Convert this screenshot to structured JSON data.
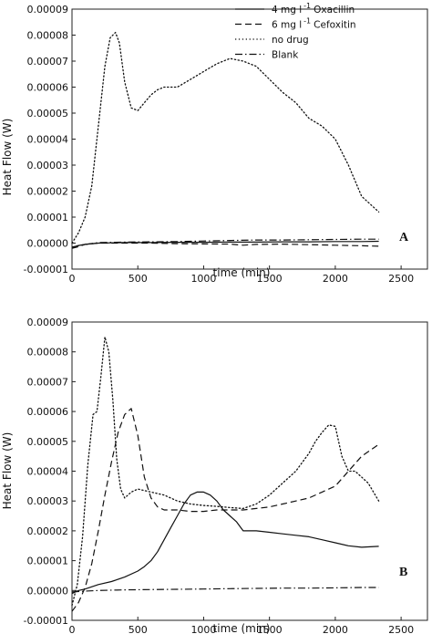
{
  "chart_data": [
    {
      "panel": "A",
      "type": "line",
      "xlabel": "time (min)",
      "ylabel": "Heat Flow (W)",
      "xlim": [
        0,
        2700
      ],
      "ylim": [
        -1e-05,
        9e-05
      ],
      "xticks": [
        0,
        500,
        1000,
        1500,
        2000,
        2500
      ],
      "xtick_labels": [
        "0",
        "500",
        "1000",
        "1500",
        "2000",
        "2500"
      ],
      "yticks": [
        -1e-05,
        0,
        1e-05,
        2e-05,
        3e-05,
        4e-05,
        5e-05,
        6e-05,
        7e-05,
        8e-05,
        9e-05
      ],
      "ytick_labels": [
        "-0.00001",
        "0.00000",
        "0.00001",
        "0.00002",
        "0.00003",
        "0.00004",
        "0.00005",
        "0.00006",
        "0.00007",
        "0.00008",
        "0.00009"
      ],
      "legend": {
        "placement": "top-right",
        "entries": [
          {
            "prefix": "4 mg l",
            "sup": "-1",
            "suffix": "Oxacillin",
            "style": "solid"
          },
          {
            "prefix": "6 mg l",
            "sup": "-1",
            "suffix": "Cefoxitin",
            "style": "dashed"
          },
          {
            "prefix": "no drug",
            "sup": "",
            "suffix": "",
            "style": "dotted"
          },
          {
            "prefix": "Blank",
            "sup": "",
            "suffix": "",
            "style": "dashdot"
          }
        ]
      },
      "series": [
        {
          "name": "4 mg l -1 Oxacillin",
          "style": "solid",
          "x": [
            0,
            40,
            100,
            200,
            400,
            600,
            800,
            1000,
            1200,
            1400,
            1600,
            1800,
            2000,
            2200,
            2330
          ],
          "y": [
            -2e-06,
            -1e-06,
            -5e-07,
            0,
            2e-07,
            2e-07,
            3e-07,
            3e-07,
            4e-07,
            4e-07,
            5e-07,
            5e-07,
            6e-07,
            6e-07,
            7e-07
          ]
        },
        {
          "name": "6 mg l -1 Cefoxitin",
          "style": "dashed",
          "x": [
            0,
            40,
            100,
            200,
            400,
            600,
            800,
            1000,
            1200,
            1300,
            1400,
            1600,
            1800,
            2000,
            2200,
            2330
          ],
          "y": [
            -2e-06,
            -1.5e-06,
            -5e-07,
            0,
            0,
            0,
            -2e-07,
            -3e-07,
            -4e-07,
            -8e-07,
            -5e-07,
            -4e-07,
            -6e-07,
            -8e-07,
            -1e-06,
            -1.2e-06
          ]
        },
        {
          "name": "no drug",
          "style": "dotted",
          "x": [
            0,
            50,
            100,
            150,
            200,
            250,
            290,
            330,
            360,
            400,
            450,
            500,
            550,
            600,
            650,
            700,
            800,
            900,
            1000,
            1100,
            1200,
            1300,
            1400,
            1500,
            1600,
            1700,
            1800,
            1900,
            2000,
            2100,
            2200,
            2330
          ],
          "y": [
            0,
            4e-06,
            1e-05,
            2.2e-05,
            4.5e-05,
            6.8e-05,
            7.9e-05,
            8.1e-05,
            7.7e-05,
            6.2e-05,
            5.2e-05,
            5.1e-05,
            5.4e-05,
            5.7e-05,
            5.9e-05,
            6e-05,
            6e-05,
            6.3e-05,
            6.6e-05,
            6.9e-05,
            7.1e-05,
            7e-05,
            6.8e-05,
            6.3e-05,
            5.8e-05,
            5.4e-05,
            4.8e-05,
            4.5e-05,
            4e-05,
            3e-05,
            1.8e-05,
            1.2e-05
          ]
        },
        {
          "name": "Blank",
          "style": "dashdot",
          "x": [
            0,
            100,
            200,
            400,
            600,
            800,
            1000,
            1200,
            1400,
            1600,
            1800,
            2000,
            2200,
            2330
          ],
          "y": [
            -1.5e-06,
            -5e-07,
            2e-07,
            4e-07,
            5e-07,
            6e-07,
            8e-07,
            1e-06,
            1.2e-06,
            1.2e-06,
            1.3e-06,
            1.4e-06,
            1.5e-06,
            1.5e-06
          ]
        }
      ],
      "annotation": "A"
    },
    {
      "panel": "B",
      "type": "line",
      "xlabel": "time (min)",
      "ylabel": "Heat Flow (W)",
      "xlim": [
        0,
        2700
      ],
      "ylim": [
        -1e-05,
        9e-05
      ],
      "xticks": [
        0,
        500,
        1000,
        1500,
        2000,
        2500
      ],
      "xtick_labels": [
        "0",
        "500",
        "1000",
        "1500",
        "2000",
        "2500"
      ],
      "yticks": [
        -1e-05,
        0,
        1e-05,
        2e-05,
        3e-05,
        4e-05,
        5e-05,
        6e-05,
        7e-05,
        8e-05,
        9e-05
      ],
      "ytick_labels": [
        "-0.00001",
        "0.00000",
        "0.00001",
        "0.00002",
        "0.00003",
        "0.00004",
        "0.00005",
        "0.00006",
        "0.00007",
        "0.00008",
        "0.00009"
      ],
      "series": [
        {
          "name": "4 mg l -1 Oxacillin",
          "style": "solid",
          "x": [
            0,
            50,
            100,
            200,
            300,
            400,
            500,
            550,
            600,
            650,
            700,
            750,
            800,
            850,
            900,
            950,
            1000,
            1050,
            1100,
            1150,
            1200,
            1250,
            1300,
            1400,
            1500,
            1600,
            1700,
            1800,
            1900,
            2000,
            2100,
            2200,
            2330
          ],
          "y": [
            -1e-06,
            0,
            5e-07,
            2e-06,
            3e-06,
            4.5e-06,
            6.5e-06,
            8e-06,
            1e-05,
            1.3e-05,
            1.7e-05,
            2.1e-05,
            2.5e-05,
            2.9e-05,
            3.2e-05,
            3.3e-05,
            3.3e-05,
            3.2e-05,
            3e-05,
            2.7e-05,
            2.5e-05,
            2.3e-05,
            2e-05,
            2e-05,
            1.95e-05,
            1.9e-05,
            1.85e-05,
            1.8e-05,
            1.7e-05,
            1.6e-05,
            1.5e-05,
            1.45e-05,
            1.48e-05
          ]
        },
        {
          "name": "6 mg l -1 Cefoxitin",
          "style": "dashed",
          "x": [
            0,
            50,
            100,
            150,
            200,
            250,
            300,
            350,
            400,
            450,
            500,
            550,
            600,
            650,
            700,
            800,
            900,
            1000,
            1100,
            1200,
            1300,
            1400,
            1500,
            1600,
            1700,
            1800,
            1900,
            2000,
            2100,
            2200,
            2330
          ],
          "y": [
            -7e-06,
            -4e-06,
            1e-06,
            9e-06,
            2e-05,
            3.2e-05,
            4.3e-05,
            5.3e-05,
            5.9e-05,
            6.1e-05,
            5.2e-05,
            3.8e-05,
            3.1e-05,
            2.8e-05,
            2.7e-05,
            2.7e-05,
            2.65e-05,
            2.65e-05,
            2.7e-05,
            2.7e-05,
            2.7e-05,
            2.75e-05,
            2.8e-05,
            2.9e-05,
            3e-05,
            3.1e-05,
            3.3e-05,
            3.5e-05,
            4e-05,
            4.5e-05,
            4.9e-05
          ]
        },
        {
          "name": "no drug",
          "style": "dotted",
          "x": [
            0,
            40,
            80,
            120,
            160,
            190,
            220,
            250,
            280,
            310,
            340,
            370,
            400,
            450,
            500,
            600,
            700,
            800,
            900,
            1000,
            1100,
            1200,
            1300,
            1400,
            1500,
            1600,
            1700,
            1800,
            1850,
            1900,
            1950,
            2000,
            2050,
            2100,
            2150,
            2200,
            2250,
            2330
          ],
          "y": [
            -5e-06,
            2e-06,
            1.8e-05,
            4.2e-05,
            5.9e-05,
            6e-05,
            7.2e-05,
            8.5e-05,
            8e-05,
            6.4e-05,
            4.4e-05,
            3.4e-05,
            3.1e-05,
            3.3e-05,
            3.4e-05,
            3.3e-05,
            3.2e-05,
            3e-05,
            2.9e-05,
            2.85e-05,
            2.82e-05,
            2.78e-05,
            2.75e-05,
            2.9e-05,
            3.2e-05,
            3.6e-05,
            4e-05,
            4.6e-05,
            5e-05,
            5.3e-05,
            5.55e-05,
            5.5e-05,
            4.5e-05,
            4e-05,
            4e-05,
            3.8e-05,
            3.6e-05,
            3e-05
          ]
        },
        {
          "name": "Blank",
          "style": "dashdot",
          "x": [
            0,
            100,
            200,
            400,
            600,
            800,
            1000,
            1200,
            1400,
            1600,
            1800,
            2000,
            2200,
            2330
          ],
          "y": [
            -5e-07,
            -2e-07,
            0,
            2e-07,
            3e-07,
            4e-07,
            5e-07,
            6e-07,
            7e-07,
            8e-07,
            8e-07,
            9e-07,
            1e-06,
            1e-06
          ]
        }
      ],
      "annotation": "B"
    }
  ]
}
